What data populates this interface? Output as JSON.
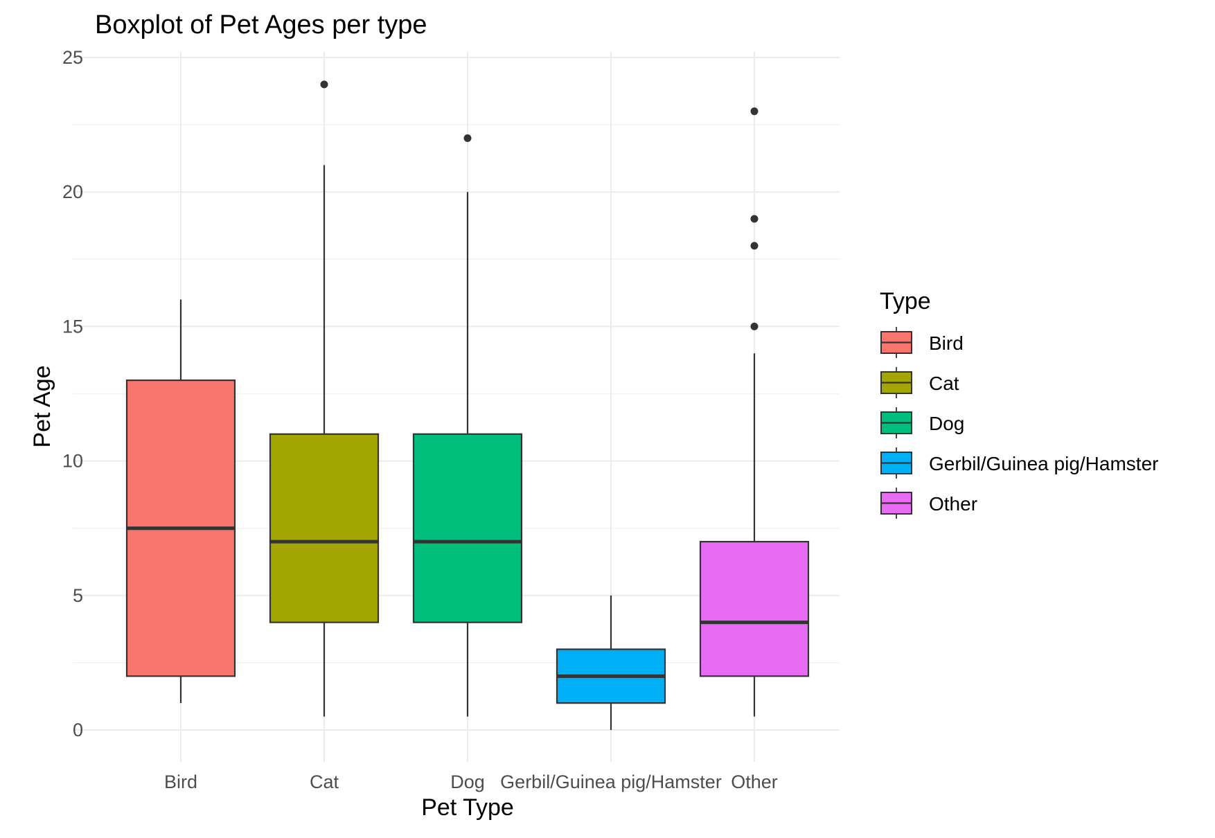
{
  "chart_data": {
    "type": "boxplot",
    "title": "Boxplot of Pet Ages per type",
    "xlabel": "Pet Type",
    "ylabel": "Pet Age",
    "ylim": [
      -1.5,
      25.5
    ],
    "yticks": [
      0,
      5,
      10,
      15,
      20,
      25
    ],
    "grid": true,
    "legend": {
      "title": "Type",
      "position": "right"
    },
    "categories": [
      "Bird",
      "Cat",
      "Dog",
      "Gerbil/Guinea pig/Hamster",
      "Other"
    ],
    "series": [
      {
        "name": "Bird",
        "color": "#F8766D",
        "min": 1,
        "q1": 2,
        "median": 7.5,
        "q3": 13,
        "max": 16,
        "outliers": []
      },
      {
        "name": "Cat",
        "color": "#A3A500",
        "min": 0.5,
        "q1": 4,
        "median": 7,
        "q3": 11,
        "max": 21,
        "outliers": [
          24
        ]
      },
      {
        "name": "Dog",
        "color": "#00BF7D",
        "min": 0.5,
        "q1": 4,
        "median": 7,
        "q3": 11,
        "max": 20,
        "outliers": [
          22
        ]
      },
      {
        "name": "Gerbil/Guinea pig/Hamster",
        "color": "#00B0F6",
        "min": 0,
        "q1": 1,
        "median": 2,
        "q3": 3,
        "max": 5,
        "outliers": []
      },
      {
        "name": "Other",
        "color": "#E76BF3",
        "min": 0.5,
        "q1": 2,
        "median": 4,
        "q3": 7,
        "max": 14,
        "outliers": [
          15,
          18,
          19,
          23
        ]
      }
    ]
  }
}
